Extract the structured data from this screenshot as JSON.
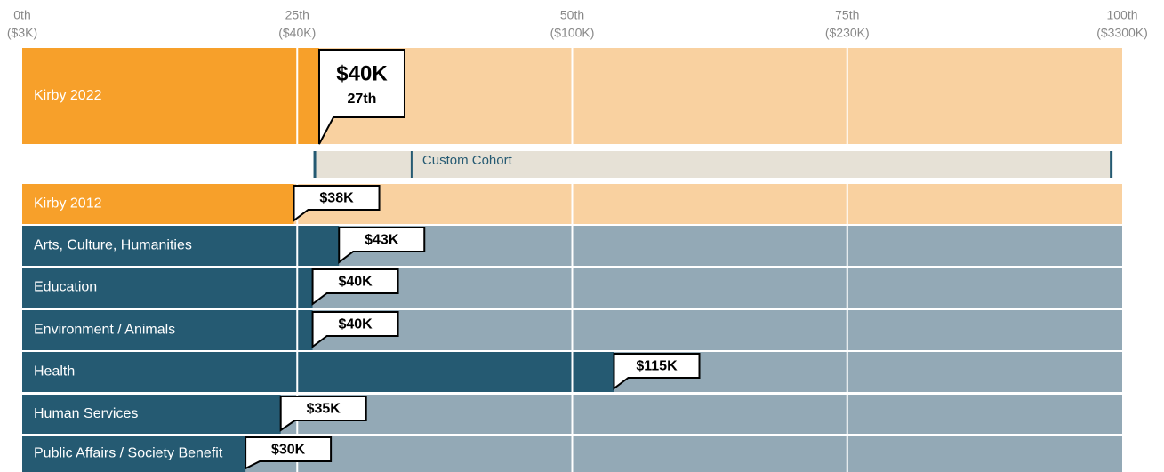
{
  "chart_data": {
    "type": "percentile_bar",
    "xlim": [
      0,
      100
    ],
    "xticks": [
      {
        "value": 0,
        "label": "0th",
        "sublabel": "($3K)"
      },
      {
        "value": 25,
        "label": "25th",
        "sublabel": "($40K)"
      },
      {
        "value": 50,
        "label": "50th",
        "sublabel": "($100K)"
      },
      {
        "value": 75,
        "label": "75th",
        "sublabel": "($230K)"
      },
      {
        "value": 100,
        "label": "100th",
        "sublabel": "($3300K)"
      }
    ],
    "categories": [
      "Kirby 2022",
      "Kirby 2012",
      "Arts, Culture, Humanities",
      "Education",
      "Environment / Animals",
      "Health",
      "Human Services",
      "Public Affairs / Society Benefit"
    ],
    "values": [
      27,
      24.7,
      28.8,
      26.4,
      26.4,
      53.8,
      23.5,
      20.3
    ],
    "value_labels": [
      "$40K",
      "$38K",
      "$43K",
      "$40K",
      "$40K",
      "$115K",
      "$35K",
      "$30K"
    ],
    "percentile_labels": [
      "27th",
      null,
      null,
      null,
      null,
      null,
      null,
      null
    ],
    "colors": [
      "#f7a02a",
      "#f7a02a",
      "#255a72",
      "#255a72",
      "#255a72",
      "#255a72",
      "#255a72",
      "#255a72"
    ],
    "background_colors": [
      "#f9d1a0",
      "#f9d1a0",
      "#93a9b6",
      "#93a9b6",
      "#93a9b6",
      "#93a9b6",
      "#93a9b6",
      "#93a9b6"
    ],
    "cohort": {
      "label": "Custom Cohort",
      "range": [
        26.6,
        99
      ],
      "marker": 35.4,
      "color": "#e6e1d6",
      "edge_color": "#255a72"
    }
  }
}
